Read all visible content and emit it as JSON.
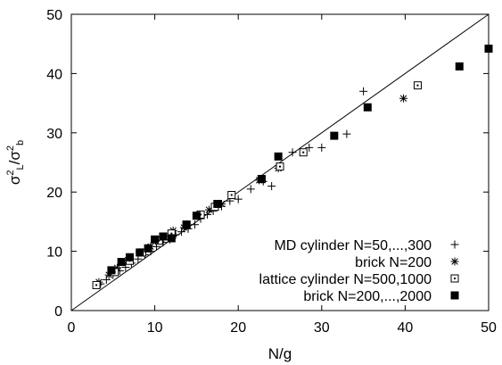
{
  "chart_data": {
    "type": "scatter",
    "title": "",
    "xlabel": "N/g",
    "ylabel": "σ_L²/σ_b²",
    "ylabel_parts": {
      "base1": "σ",
      "sup1": "2",
      "sub1": "L",
      "slash": "/",
      "base2": "σ",
      "sup2": "2",
      "sub2": "b"
    },
    "xlim": [
      0,
      50
    ],
    "ylim": [
      0,
      50
    ],
    "xticks": [
      "0",
      "10",
      "20",
      "30",
      "40",
      "50"
    ],
    "yticks": [
      "0",
      "10",
      "20",
      "30",
      "40",
      "50"
    ],
    "grid": false,
    "legend_position": "bottom-right",
    "reference_line": {
      "from": [
        0,
        0
      ],
      "to": [
        50,
        50
      ],
      "label": ""
    },
    "series": [
      {
        "name": "MD cylinder N=50,...,300",
        "marker": "plus",
        "x": [
          3.5,
          4.2,
          5.0,
          5.8,
          6.5,
          7.2,
          8.0,
          8.8,
          9.5,
          10.2,
          11.0,
          11.8,
          12.5,
          13.2,
          14.0,
          14.8,
          15.5,
          16.3,
          17.0,
          18.0,
          19.0,
          20.0,
          21.5,
          23.0,
          24.0,
          26.5,
          28.5,
          30.0,
          33.0,
          35.0
        ],
        "y": [
          4.5,
          5.2,
          6.0,
          6.7,
          7.3,
          8.0,
          8.7,
          9.4,
          10.0,
          10.8,
          11.5,
          12.0,
          12.8,
          13.3,
          13.8,
          14.5,
          15.5,
          16.2,
          16.8,
          17.6,
          18.5,
          18.8,
          20.5,
          21.8,
          21.0,
          26.7,
          27.5,
          27.5,
          29.8,
          37.0
        ]
      },
      {
        "name": "brick N=200",
        "marker": "star",
        "x": [
          3.3,
          4.5,
          5.5,
          6.8,
          8.2,
          9.5,
          10.8,
          12.2,
          13.5,
          15.0,
          16.5,
          18.0,
          22.5,
          24.8,
          39.8
        ],
        "y": [
          4.8,
          6.0,
          7.2,
          8.5,
          9.8,
          10.8,
          12.0,
          13.5,
          14.0,
          16.0,
          17.0,
          18.0,
          22.0,
          24.0,
          35.8
        ]
      },
      {
        "name": "lattice cylinder N=500,1000",
        "marker": "square-open",
        "x": [
          3.0,
          5.2,
          7.0,
          8.5,
          10.5,
          12.0,
          13.8,
          15.5,
          17.2,
          19.2,
          22.8,
          25.0,
          27.8,
          41.5
        ],
        "y": [
          4.3,
          6.5,
          8.4,
          9.8,
          11.8,
          13.0,
          14.5,
          16.2,
          17.5,
          19.5,
          22.2,
          24.3,
          26.7,
          38.0
        ]
      },
      {
        "name": "brick N=200,...,2000",
        "marker": "square-filled",
        "x": [
          4.8,
          6.0,
          7.0,
          8.2,
          9.2,
          10.0,
          11.0,
          12.0,
          13.8,
          15.0,
          17.5,
          22.8,
          24.8,
          31.5,
          35.5,
          46.5,
          50.0
        ],
        "y": [
          6.8,
          8.2,
          9.0,
          9.8,
          10.5,
          12.0,
          12.5,
          12.2,
          14.5,
          16.0,
          18.0,
          22.2,
          26.0,
          29.5,
          34.3,
          41.2,
          44.2
        ]
      }
    ]
  }
}
